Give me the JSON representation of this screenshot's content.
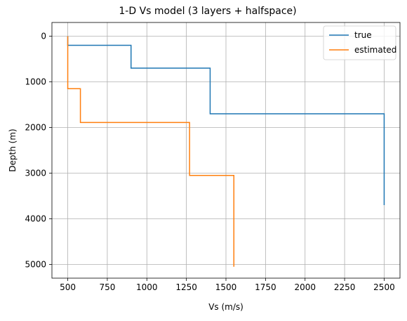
{
  "chart_data": {
    "type": "line",
    "title": "1-D Vs model (3 layers + halfspace)",
    "xlabel": "Vs (m/s)",
    "ylabel": "Depth (m)",
    "xlim": [
      400,
      2600
    ],
    "ylim": [
      5300,
      -300
    ],
    "y_inverted": true,
    "grid": true,
    "legend_position": "top-right",
    "xticks": [
      500,
      750,
      1000,
      1250,
      1500,
      1750,
      2000,
      2250,
      2500
    ],
    "yticks": [
      0,
      1000,
      2000,
      3000,
      4000,
      5000
    ],
    "series": [
      {
        "name": "true",
        "color": "#1f77b4",
        "x": [
          500,
          500,
          900,
          900,
          1400,
          1400,
          2500,
          2500
        ],
        "y": [
          0,
          200,
          200,
          700,
          700,
          1700,
          1700,
          3700
        ]
      },
      {
        "name": "estimated",
        "color": "#ff7f0e",
        "x": [
          500,
          500,
          580,
          580,
          1270,
          1270,
          1550,
          1550
        ],
        "y": [
          0,
          1150,
          1150,
          1890,
          1890,
          3050,
          3050,
          5050
        ]
      }
    ]
  }
}
